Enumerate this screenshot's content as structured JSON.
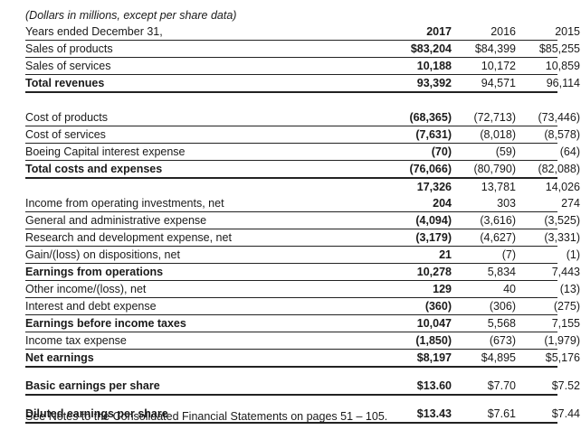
{
  "caption": "(Dollars in millions, except per share data)",
  "header": {
    "label": "Years ended December 31,",
    "y1": "2017",
    "y2": "2016",
    "y3": "2015"
  },
  "rows": {
    "sales_products": {
      "label": "Sales of products",
      "v1": "$83,204",
      "v2": "$84,399",
      "v3": "$85,255"
    },
    "sales_services": {
      "label": "Sales of services",
      "v1": "10,188",
      "v2": "10,172",
      "v3": "10,859"
    },
    "total_revenues": {
      "label": "Total revenues",
      "v1": "93,392",
      "v2": "94,571",
      "v3": "96,114"
    },
    "cost_products": {
      "label": "Cost of products",
      "v1": "(68,365)",
      "v2": "(72,713)",
      "v3": "(73,446)"
    },
    "cost_services": {
      "label": "Cost of services",
      "v1": "(7,631)",
      "v2": "(8,018)",
      "v3": "(8,578)"
    },
    "bc_interest": {
      "label": "Boeing Capital interest expense",
      "v1": "(70)",
      "v2": "(59)",
      "v3": "(64)"
    },
    "total_costs": {
      "label": "Total costs and expenses",
      "v1": "(76,066)",
      "v2": "(80,790)",
      "v3": "(82,088)"
    },
    "subtotal": {
      "label": "",
      "v1": "17,326",
      "v2": "13,781",
      "v3": "14,026"
    },
    "op_investments": {
      "label": "Income from operating investments, net",
      "v1": "204",
      "v2": "303",
      "v3": "274"
    },
    "g_and_a": {
      "label": "General and administrative expense",
      "v1": "(4,094)",
      "v2": "(3,616)",
      "v3": "(3,525)"
    },
    "r_and_d": {
      "label": "Research and development expense, net",
      "v1": "(3,179)",
      "v2": "(4,627)",
      "v3": "(3,331)"
    },
    "gain_loss": {
      "label": "Gain/(loss) on dispositions, net",
      "v1": "21",
      "v2": "(7)",
      "v3": "(1)"
    },
    "earnings_ops": {
      "label": "Earnings from operations",
      "v1": "10,278",
      "v2": "5,834",
      "v3": "7,443"
    },
    "other_income": {
      "label": "Other income/(loss), net",
      "v1": "129",
      "v2": "40",
      "v3": "(13)"
    },
    "interest_debt": {
      "label": "Interest and debt expense",
      "v1": "(360)",
      "v2": "(306)",
      "v3": "(275)"
    },
    "ebt": {
      "label": "Earnings before income taxes",
      "v1": "10,047",
      "v2": "5,568",
      "v3": "7,155"
    },
    "income_tax": {
      "label": "Income tax expense",
      "v1": "(1,850)",
      "v2": "(673)",
      "v3": "(1,979)"
    },
    "net_earnings": {
      "label": "Net earnings",
      "v1": "$8,197",
      "v2": "$4,895",
      "v3": "$5,176"
    },
    "basic_eps": {
      "label": "Basic earnings per share",
      "v1": "$13.60",
      "v2": "$7.70",
      "v3": "$7.52"
    },
    "diluted_eps": {
      "label": "Diluted earnings per share",
      "v1": "$13.43",
      "v2": "$7.61",
      "v3": "$7.44"
    }
  },
  "footnote": "See Notes to the Consolidated Financial Statements on pages 51 – 105."
}
